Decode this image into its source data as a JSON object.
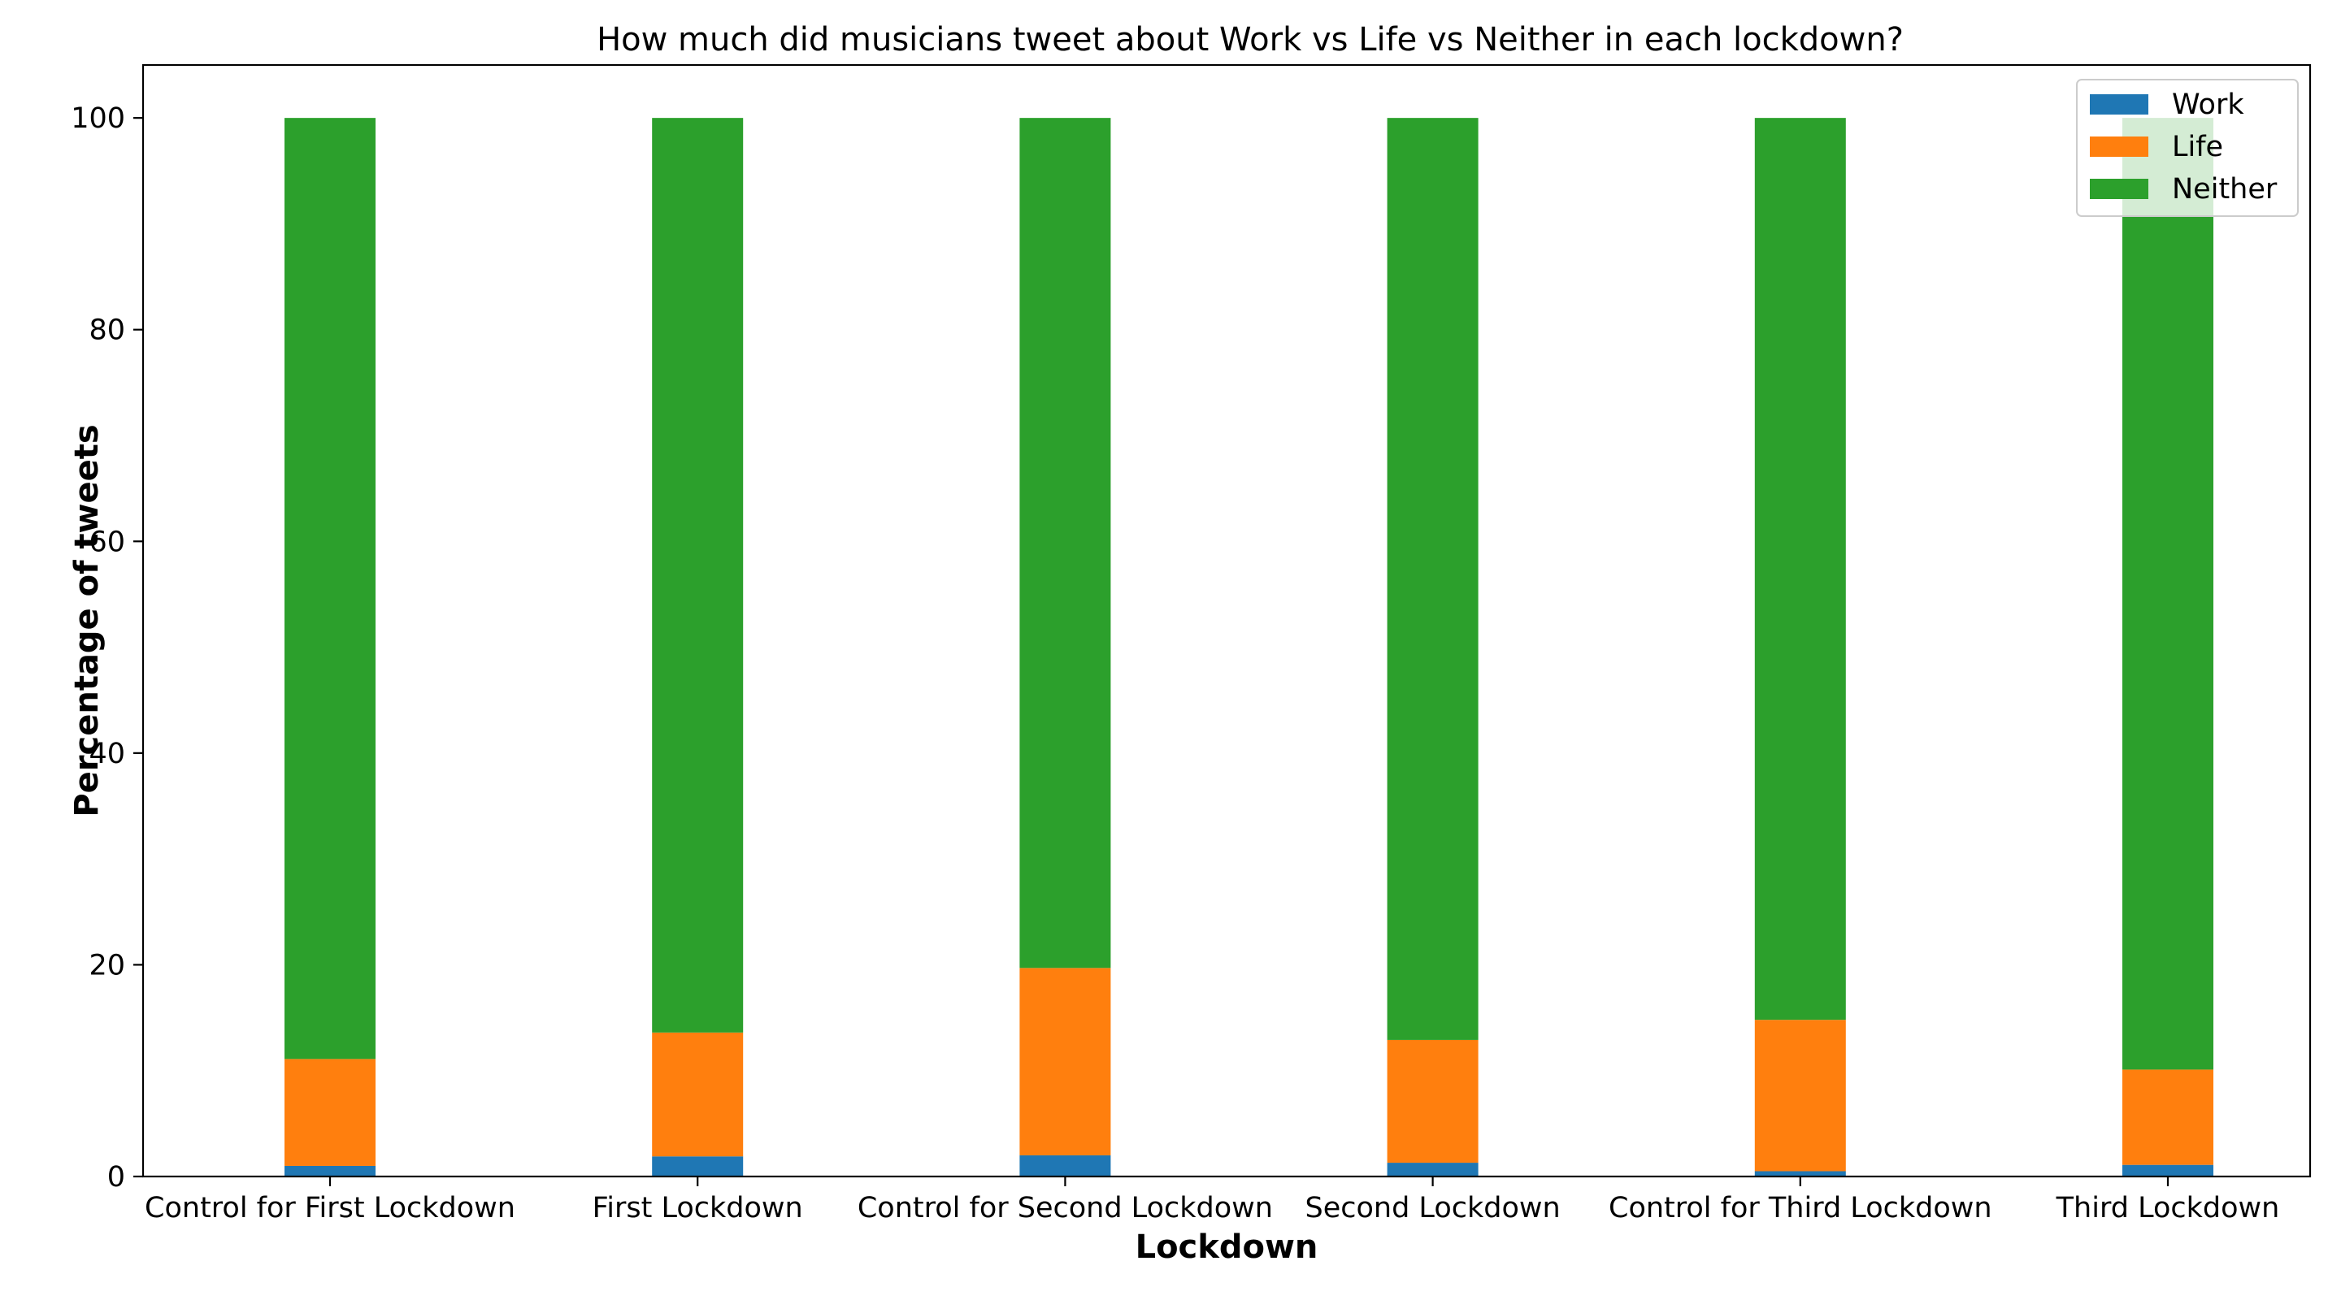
{
  "chart_data": {
    "type": "bar",
    "stacked": true,
    "title": "How much did musicians tweet about Work vs Life vs Neither in each lockdown?",
    "xlabel": "Lockdown",
    "ylabel": "Percentage of tweets",
    "ylim": [
      0,
      105
    ],
    "yticks": [
      0,
      20,
      40,
      60,
      80,
      100
    ],
    "legend_position": "top-right",
    "grid": false,
    "categories": [
      "Control for First Lockdown",
      "First Lockdown",
      "Control for Second Lockdown",
      "Second Lockdown",
      "Control for Third Lockdown",
      "Third Lockdown"
    ],
    "series": [
      {
        "name": "Work",
        "color": "#1f77b4",
        "values": [
          1.0,
          1.9,
          2.0,
          1.3,
          0.5,
          1.1
        ]
      },
      {
        "name": "Life",
        "color": "#ff7f0e",
        "values": [
          10.1,
          11.7,
          17.7,
          11.6,
          14.3,
          9.0
        ]
      },
      {
        "name": "Neither",
        "color": "#2ca02c",
        "values": [
          88.9,
          86.4,
          80.3,
          87.1,
          85.2,
          89.9
        ]
      }
    ]
  }
}
